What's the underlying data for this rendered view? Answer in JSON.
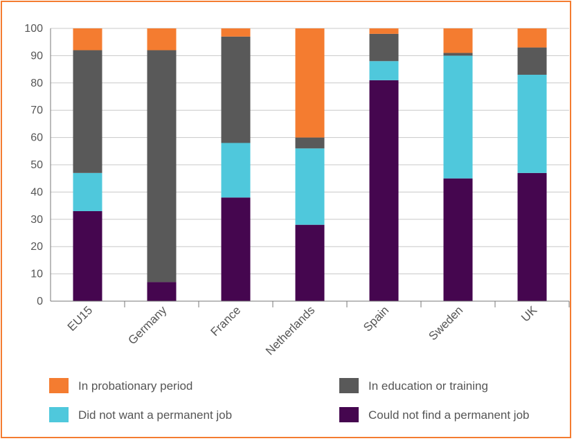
{
  "chart_data": {
    "type": "bar",
    "stacked": true,
    "categories": [
      "EU15",
      "Germany",
      "France",
      "Netherlands",
      "Spain",
      "Sweden",
      "UK"
    ],
    "series": [
      {
        "name": "Could not find a permanent job",
        "color": "#45064f",
        "values": [
          33,
          7,
          38,
          28,
          81,
          45,
          47
        ]
      },
      {
        "name": "Did not want a permanent job",
        "color": "#4fc8dc",
        "values": [
          14,
          0,
          20,
          28,
          7,
          45,
          36
        ]
      },
      {
        "name": "In education or training",
        "color": "#595959",
        "values": [
          45,
          85,
          39,
          4,
          10,
          1,
          10
        ]
      },
      {
        "name": "In probationary period",
        "color": "#f47c30",
        "values": [
          8,
          8,
          3,
          40,
          2,
          9,
          7
        ]
      }
    ],
    "yticks": [
      0,
      10,
      20,
      30,
      40,
      50,
      60,
      70,
      80,
      90,
      100
    ],
    "ylim": [
      0,
      100
    ],
    "grid": true,
    "legend": {
      "placement": "bottom",
      "entries": [
        "In probationary period",
        "In education or training",
        "Did not want a permanent job",
        "Could not find a permanent job"
      ]
    }
  }
}
